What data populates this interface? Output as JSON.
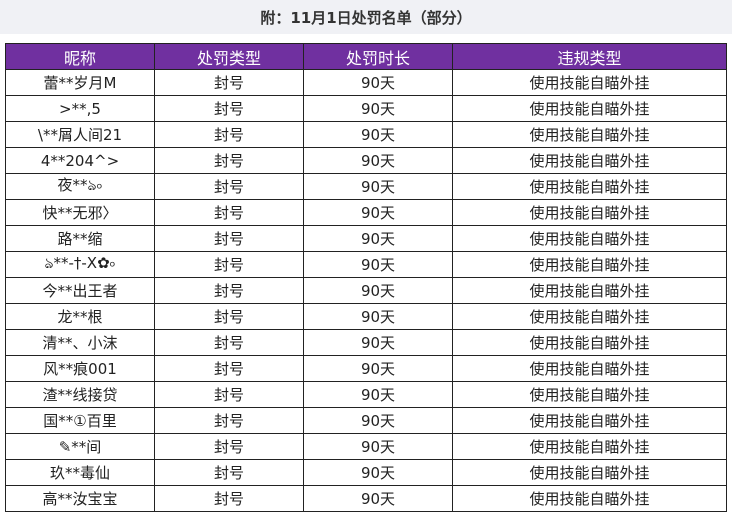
{
  "title": "附：11月1日处罚名单（部分）",
  "columns": [
    "昵称",
    "处罚类型",
    "处罚时长",
    "违规类型"
  ],
  "rows": [
    [
      "蕾**岁月M",
      "封号",
      "90天",
      "使用技能自瞄外挂"
    ],
    [
      ">**,5",
      "封号",
      "90天",
      "使用技能自瞄外挂"
    ],
    [
      "\\**屑人间21",
      "封号",
      "90天",
      "使用技能自瞄外挂"
    ],
    [
      "4**204^>",
      "封号",
      "90天",
      "使用技能自瞄外挂"
    ],
    [
      "夜**ঌ৹",
      "封号",
      "90天",
      "使用技能自瞄外挂"
    ],
    [
      "快**无邪〉",
      "封号",
      "90天",
      "使用技能自瞄外挂"
    ],
    [
      "路**缩",
      "封号",
      "90天",
      "使用技能自瞄外挂"
    ],
    [
      "ঌ**-†-X✿৹",
      "封号",
      "90天",
      "使用技能自瞄外挂"
    ],
    [
      "今**出王者",
      "封号",
      "90天",
      "使用技能自瞄外挂"
    ],
    [
      "龙**根",
      "封号",
      "90天",
      "使用技能自瞄外挂"
    ],
    [
      "清**、小沫",
      "封号",
      "90天",
      "使用技能自瞄外挂"
    ],
    [
      "风**痕001",
      "封号",
      "90天",
      "使用技能自瞄外挂"
    ],
    [
      "渣**线接贷",
      "封号",
      "90天",
      "使用技能自瞄外挂"
    ],
    [
      "国**①百里",
      "封号",
      "90天",
      "使用技能自瞄外挂"
    ],
    [
      "✎**间",
      "封号",
      "90天",
      "使用技能自瞄外挂"
    ],
    [
      "玖**毒仙",
      "封号",
      "90天",
      "使用技能自瞄外挂"
    ],
    [
      "高**汝宝宝",
      "封号",
      "90天",
      "使用技能自瞄外挂"
    ]
  ],
  "colors": {
    "header_bg": "#7030a0",
    "title_bg": "#f0f1f5"
  }
}
